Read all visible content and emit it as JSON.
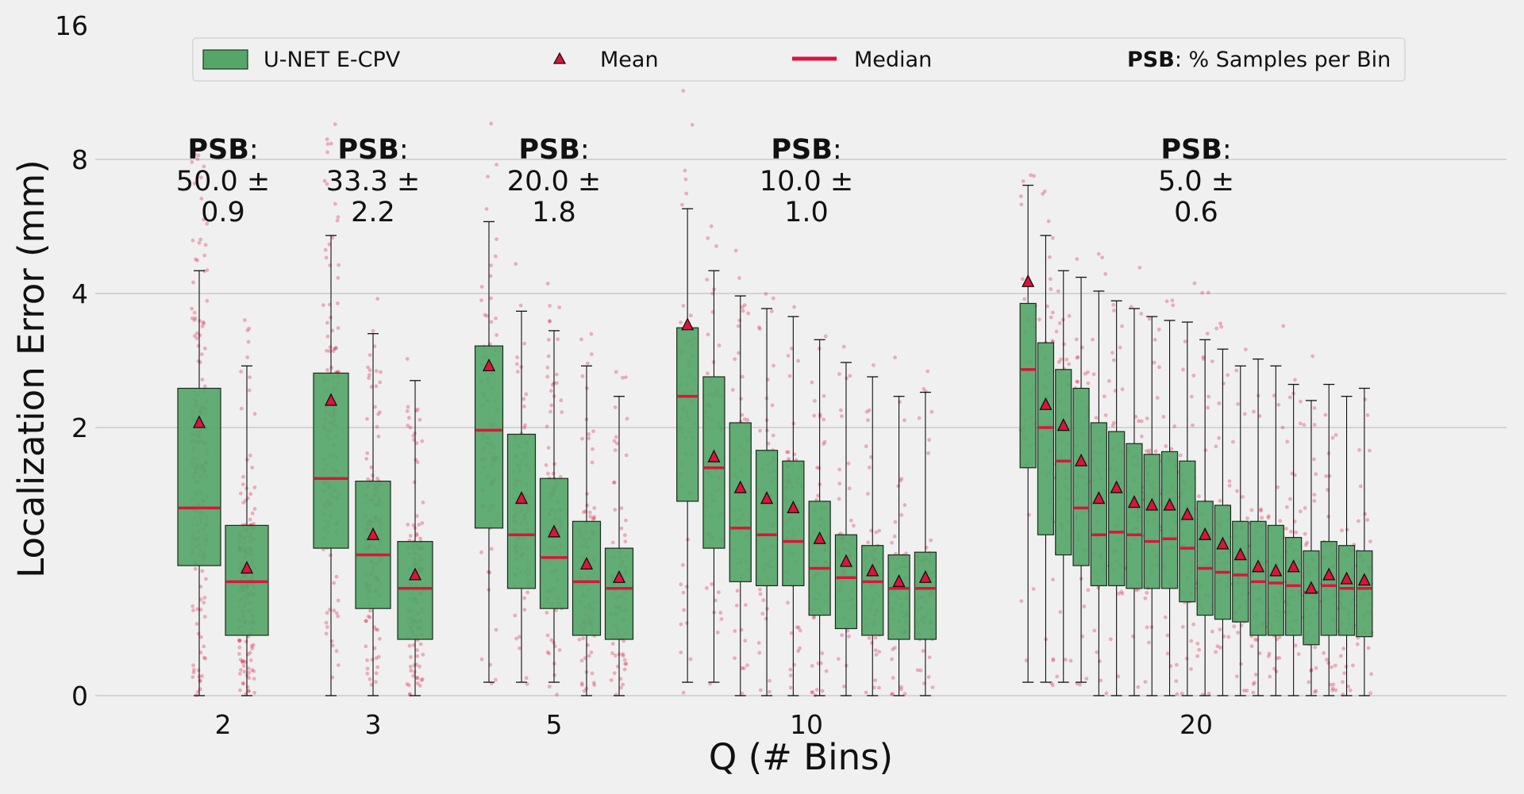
{
  "chart_data": {
    "type": "box",
    "ylabel": "Localization Error (mm)",
    "xlabel": "Q (# Bins)",
    "yscale": "symlog",
    "ylim": [
      0,
      16
    ],
    "yticks": [
      "0",
      "2",
      "4",
      "8",
      "16"
    ],
    "grid": "horizontal",
    "colors": {
      "box": "#56a66a",
      "median": "#dc143c",
      "points": "#dc143c",
      "background": "#f0f0f0"
    },
    "legend": {
      "position": "top",
      "entries": [
        "U-NET E-CPV",
        "Mean",
        "Median"
      ],
      "psb_bold": "PSB",
      "psb_rest": ": % Samples per Bin"
    },
    "groups": [
      {
        "label": "2",
        "psb_line1": "PSB:",
        "psb_line2": "50.0 ±",
        "psb_line3": "0.9",
        "boxes": [
          {
            "q1": 0.97,
            "med": 1.4,
            "q3": 2.45,
            "mean": 2.05,
            "lo": 0,
            "hi": 4.5
          },
          {
            "q1": 0.45,
            "med": 0.85,
            "q3": 1.27,
            "mean": 0.95,
            "lo": 0,
            "hi": 2.75
          }
        ]
      },
      {
        "label": "3",
        "psb_line1": "PSB:",
        "psb_line2": "33.3 ±",
        "psb_line3": "2.2",
        "boxes": [
          {
            "q1": 1.1,
            "med": 1.62,
            "q3": 2.65,
            "mean": 2.3,
            "lo": 0,
            "hi": 5.4
          },
          {
            "q1": 0.65,
            "med": 1.05,
            "q3": 1.6,
            "mean": 1.2,
            "lo": 0,
            "hi": 3.25
          },
          {
            "q1": 0.42,
            "med": 0.8,
            "q3": 1.15,
            "mean": 0.9,
            "lo": 0,
            "hi": 2.55
          }
        ]
      },
      {
        "label": "5",
        "psb_line1": "PSB:",
        "psb_line2": "20.0 ±",
        "psb_line3": "1.8",
        "boxes": [
          {
            "q1": 1.25,
            "med": 1.98,
            "q3": 3.05,
            "mean": 2.75,
            "lo": 0.1,
            "hi": 5.8
          },
          {
            "q1": 0.8,
            "med": 1.2,
            "q3": 1.95,
            "mean": 1.47,
            "lo": 0.1,
            "hi": 3.65
          },
          {
            "q1": 0.65,
            "med": 1.03,
            "q3": 1.62,
            "mean": 1.22,
            "lo": 0.1,
            "hi": 3.3
          },
          {
            "q1": 0.45,
            "med": 0.85,
            "q3": 1.3,
            "mean": 0.98,
            "lo": 0,
            "hi": 2.75
          },
          {
            "q1": 0.42,
            "med": 0.8,
            "q3": 1.1,
            "mean": 0.88,
            "lo": 0,
            "hi": 2.35
          }
        ]
      },
      {
        "label": "10",
        "psb_line1": "PSB:",
        "psb_line2": "10.0 ±",
        "psb_line3": "1.0",
        "boxes": [
          {
            "q1": 1.45,
            "med": 2.35,
            "q3": 3.35,
            "mean": 3.4,
            "lo": 0.1,
            "hi": 6.2
          },
          {
            "q1": 1.1,
            "med": 1.7,
            "q3": 2.6,
            "mean": 1.78,
            "lo": 0.1,
            "hi": 4.5
          },
          {
            "q1": 0.85,
            "med": 1.25,
            "q3": 2.05,
            "mean": 1.55,
            "lo": 0,
            "hi": 3.95
          },
          {
            "q1": 0.82,
            "med": 1.2,
            "q3": 1.83,
            "mean": 1.47,
            "lo": 0,
            "hi": 3.7
          },
          {
            "q1": 0.82,
            "med": 1.15,
            "q3": 1.75,
            "mean": 1.4,
            "lo": 0,
            "hi": 3.55
          },
          {
            "q1": 0.6,
            "med": 0.95,
            "q3": 1.45,
            "mean": 1.17,
            "lo": 0,
            "hi": 3.15
          },
          {
            "q1": 0.5,
            "med": 0.88,
            "q3": 1.2,
            "mean": 1.0,
            "lo": 0,
            "hi": 2.8
          },
          {
            "q1": 0.45,
            "med": 0.85,
            "q3": 1.12,
            "mean": 0.93,
            "lo": 0,
            "hi": 2.6
          },
          {
            "q1": 0.42,
            "med": 0.8,
            "q3": 1.05,
            "mean": 0.85,
            "lo": 0,
            "hi": 2.35
          },
          {
            "q1": 0.42,
            "med": 0.8,
            "q3": 1.07,
            "mean": 0.88,
            "lo": 0,
            "hi": 2.4
          }
        ]
      },
      {
        "label": "20",
        "psb_line1": "PSB:",
        "psb_line2": "5.0 ±",
        "psb_line3": "0.6",
        "boxes": [
          {
            "q1": 1.7,
            "med": 2.7,
            "q3": 3.8,
            "mean": 4.25,
            "lo": 0.1,
            "hi": 7.0
          },
          {
            "q1": 1.2,
            "med": 2.0,
            "q3": 3.1,
            "mean": 2.25,
            "lo": 0.1,
            "hi": 5.4
          },
          {
            "q1": 1.05,
            "med": 1.75,
            "q3": 2.7,
            "mean": 2.02,
            "lo": 0.1,
            "hi": 4.5
          },
          {
            "q1": 0.97,
            "med": 1.4,
            "q3": 2.45,
            "mean": 1.75,
            "lo": 0.1,
            "hi": 4.35
          },
          {
            "q1": 0.82,
            "med": 1.2,
            "q3": 2.05,
            "mean": 1.47,
            "lo": 0,
            "hi": 4.05
          },
          {
            "q1": 0.82,
            "med": 1.22,
            "q3": 1.97,
            "mean": 1.55,
            "lo": 0,
            "hi": 3.85
          },
          {
            "q1": 0.8,
            "med": 1.2,
            "q3": 1.88,
            "mean": 1.44,
            "lo": 0,
            "hi": 3.7
          },
          {
            "q1": 0.8,
            "med": 1.15,
            "q3": 1.8,
            "mean": 1.42,
            "lo": 0,
            "hi": 3.55
          },
          {
            "q1": 0.8,
            "med": 1.17,
            "q3": 1.82,
            "mean": 1.42,
            "lo": 0,
            "hi": 3.48
          },
          {
            "q1": 0.7,
            "med": 1.1,
            "q3": 1.75,
            "mean": 1.35,
            "lo": 0,
            "hi": 3.45
          },
          {
            "q1": 0.6,
            "med": 0.95,
            "q3": 1.45,
            "mean": 1.2,
            "lo": 0,
            "hi": 3.15
          },
          {
            "q1": 0.57,
            "med": 0.92,
            "q3": 1.42,
            "mean": 1.13,
            "lo": 0,
            "hi": 3.0
          },
          {
            "q1": 0.55,
            "med": 0.9,
            "q3": 1.3,
            "mean": 1.05,
            "lo": 0,
            "hi": 2.75
          },
          {
            "q1": 0.45,
            "med": 0.85,
            "q3": 1.3,
            "mean": 0.96,
            "lo": 0,
            "hi": 2.85
          },
          {
            "q1": 0.45,
            "med": 0.84,
            "q3": 1.27,
            "mean": 0.93,
            "lo": 0,
            "hi": 2.75
          },
          {
            "q1": 0.45,
            "med": 0.82,
            "q3": 1.18,
            "mean": 0.96,
            "lo": 0,
            "hi": 2.5
          },
          {
            "q1": 0.38,
            "med": 0.77,
            "q3": 1.08,
            "mean": 0.8,
            "lo": 0,
            "hi": 2.3
          },
          {
            "q1": 0.45,
            "med": 0.82,
            "q3": 1.15,
            "mean": 0.9,
            "lo": 0,
            "hi": 2.5
          },
          {
            "q1": 0.45,
            "med": 0.8,
            "q3": 1.12,
            "mean": 0.87,
            "lo": 0,
            "hi": 2.35
          },
          {
            "q1": 0.44,
            "med": 0.8,
            "q3": 1.08,
            "mean": 0.86,
            "lo": 0,
            "hi": 2.45
          }
        ]
      }
    ]
  }
}
